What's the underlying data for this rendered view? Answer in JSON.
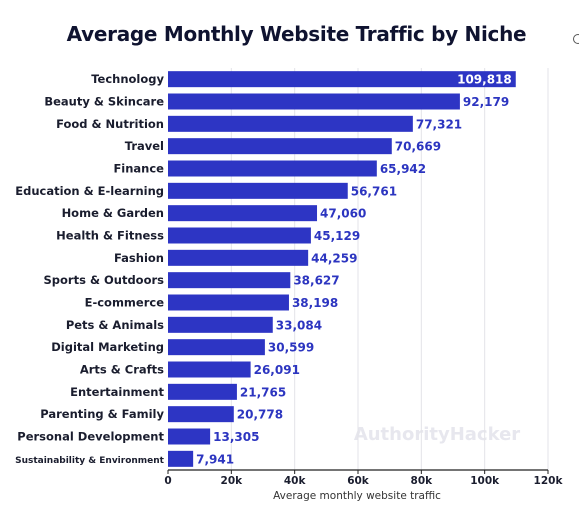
{
  "chart_data": {
    "type": "bar",
    "orientation": "horizontal",
    "title": "Average Monthly Website Traffic by Niche",
    "xlabel": "Average monthly website traffic",
    "ylabel": "",
    "xlim": [
      0,
      120000
    ],
    "x_ticks": [
      0,
      20000,
      40000,
      60000,
      80000,
      100000,
      120000
    ],
    "x_tick_labels": [
      "0",
      "20k",
      "40k",
      "60k",
      "80k",
      "100k",
      "120k"
    ],
    "grid": true,
    "legend": "none",
    "bar_color": "#2d35c4",
    "categories": [
      "Technology",
      "Beauty & Skincare",
      "Food & Nutrition",
      "Travel",
      "Finance",
      "Education & E-learning",
      "Home & Garden",
      "Health & Fitness",
      "Fashion",
      "Sports & Outdoors",
      "E-commerce",
      "Pets & Animals",
      "Digital Marketing",
      "Arts & Crafts",
      "Entertainment",
      "Parenting & Family",
      "Personal Development",
      "Sustainability & Environment"
    ],
    "values": [
      109818,
      92179,
      77321,
      70669,
      65942,
      56761,
      47060,
      45129,
      44259,
      38627,
      38198,
      33084,
      30599,
      26091,
      21765,
      20778,
      13305,
      7941
    ],
    "value_labels": [
      "109,818",
      "92,179",
      "77,321",
      "70,669",
      "65,942",
      "56,761",
      "47,060",
      "45,129",
      "44,259",
      "38,627",
      "38,198",
      "33,084",
      "30,599",
      "26,091",
      "21,765",
      "20,778",
      "13,305",
      "7,941"
    ],
    "watermark": "AuthorityHacker"
  }
}
